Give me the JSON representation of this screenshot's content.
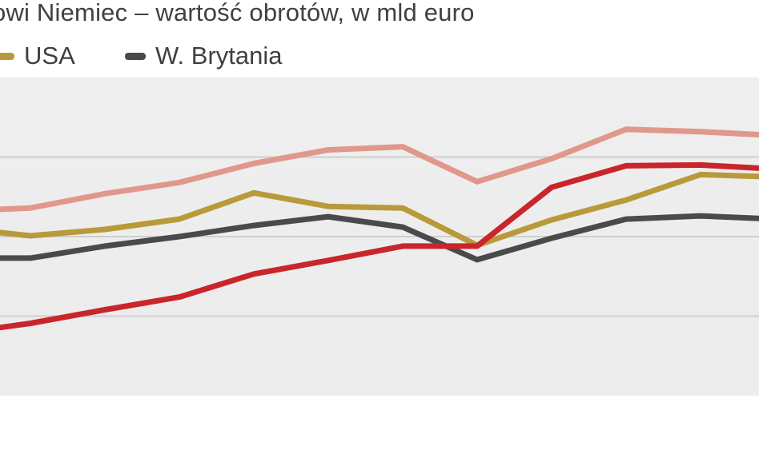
{
  "header": {
    "title": "owi Niemiec – wartość obrotów, w mld euro"
  },
  "legend": {
    "items": [
      {
        "label": "USA",
        "color": "#b99a3a"
      },
      {
        "label": "W. Brytania",
        "color": "#4a4a4a"
      }
    ]
  },
  "chart_data": {
    "type": "line",
    "title": "owi Niemiec – wartość obrotów, w mld euro",
    "xlabel": "",
    "ylabel": "",
    "ylim": [
      0,
      4
    ],
    "grid": true,
    "legend_position": "top-left",
    "x": [
      0,
      1,
      2,
      3,
      4,
      5,
      6,
      7,
      8,
      9,
      10,
      11
    ],
    "series": [
      {
        "color": "#e0988a",
        "values": [
          2.32,
          2.36,
          2.54,
          2.68,
          2.92,
          3.09,
          3.13,
          2.69,
          2.98,
          3.35,
          3.32,
          3.27
        ]
      },
      {
        "name": "USA",
        "color": "#b99a3a",
        "values": [
          2.11,
          2.01,
          2.09,
          2.22,
          2.55,
          2.38,
          2.36,
          1.89,
          2.21,
          2.46,
          2.78,
          2.75
        ]
      },
      {
        "name": "W. Brytania",
        "color": "#4a4a4a",
        "values": [
          1.73,
          1.73,
          1.88,
          2.0,
          2.14,
          2.25,
          2.12,
          1.71,
          1.98,
          2.22,
          2.26,
          2.22
        ]
      },
      {
        "color": "#c8262b",
        "values": [
          0.78,
          0.91,
          1.08,
          1.24,
          1.53,
          1.7,
          1.88,
          1.88,
          2.62,
          2.89,
          2.9,
          2.85
        ]
      }
    ]
  }
}
